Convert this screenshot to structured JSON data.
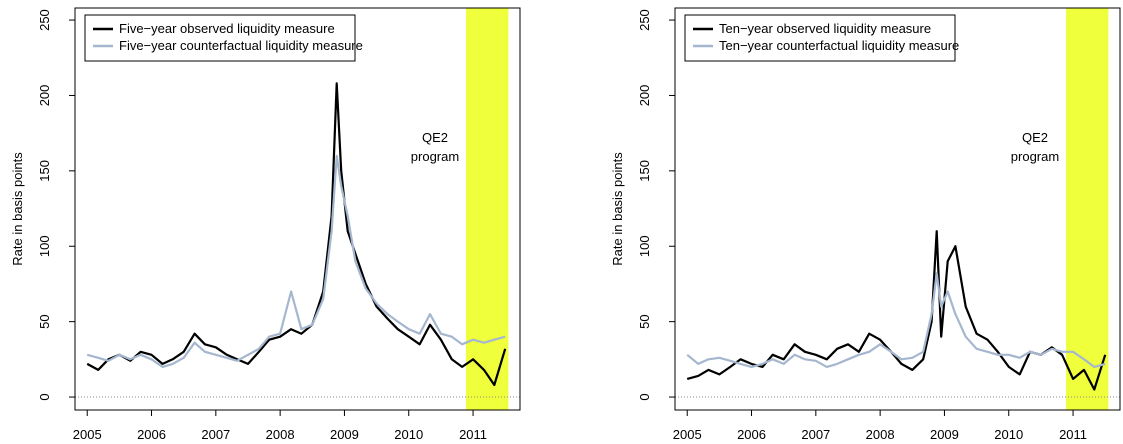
{
  "chart_data": [
    {
      "type": "line",
      "ylabel": "Rate in basis points",
      "legend": "top-left",
      "x": [
        2005.0,
        2005.17,
        2005.33,
        2005.5,
        2005.67,
        2005.83,
        2006.0,
        2006.17,
        2006.33,
        2006.5,
        2006.67,
        2006.83,
        2007.0,
        2007.17,
        2007.33,
        2007.5,
        2007.67,
        2007.83,
        2008.0,
        2008.17,
        2008.33,
        2008.5,
        2008.67,
        2008.8,
        2008.88,
        2008.95,
        2009.05,
        2009.17,
        2009.33,
        2009.5,
        2009.67,
        2009.83,
        2010.0,
        2010.17,
        2010.33,
        2010.5,
        2010.67,
        2010.83,
        2011.0,
        2011.17,
        2011.33,
        2011.5
      ],
      "series": [
        {
          "name": "Five−year observed liquidity measure",
          "color": "#000000",
          "values": [
            22,
            18,
            25,
            28,
            24,
            30,
            28,
            22,
            25,
            30,
            42,
            35,
            33,
            28,
            25,
            22,
            30,
            38,
            40,
            45,
            42,
            48,
            70,
            120,
            208,
            150,
            110,
            95,
            75,
            60,
            52,
            45,
            40,
            35,
            48,
            38,
            25,
            20,
            25,
            18,
            8,
            32
          ]
        },
        {
          "name": "Five−year counterfactual liquidity measure",
          "color": "#a5b6cf",
          "values": [
            28,
            26,
            24,
            28,
            25,
            28,
            25,
            20,
            22,
            26,
            36,
            30,
            28,
            26,
            24,
            28,
            32,
            40,
            42,
            70,
            45,
            48,
            65,
            110,
            160,
            140,
            120,
            90,
            72,
            62,
            55,
            50,
            45,
            42,
            55,
            42,
            40,
            35,
            38,
            36,
            38,
            40
          ]
        }
      ],
      "xlim": [
        2004.81,
        2011.73
      ],
      "ylim": [
        -8.6,
        258
      ],
      "xticks": [
        2005,
        2006,
        2007,
        2008,
        2009,
        2010,
        2011
      ],
      "yticks": [
        0,
        50,
        100,
        150,
        200,
        250
      ],
      "baseline": 0,
      "shade": [
        2010.89,
        2011.55
      ],
      "shade_color": "#f0ff3c",
      "annotation": [
        "QE2",
        "program"
      ]
    },
    {
      "type": "line",
      "ylabel": "Rate in basis points",
      "legend": "top-left",
      "x": [
        2005.0,
        2005.17,
        2005.33,
        2005.5,
        2005.67,
        2005.83,
        2006.0,
        2006.17,
        2006.33,
        2006.5,
        2006.67,
        2006.83,
        2007.0,
        2007.17,
        2007.33,
        2007.5,
        2007.67,
        2007.83,
        2008.0,
        2008.17,
        2008.33,
        2008.5,
        2008.67,
        2008.8,
        2008.88,
        2008.95,
        2009.05,
        2009.17,
        2009.33,
        2009.5,
        2009.67,
        2009.83,
        2010.0,
        2010.17,
        2010.33,
        2010.5,
        2010.67,
        2010.83,
        2011.0,
        2011.17,
        2011.33,
        2011.5
      ],
      "series": [
        {
          "name": "Ten−year observed liquidity measure",
          "color": "#000000",
          "values": [
            12,
            14,
            18,
            15,
            20,
            25,
            22,
            20,
            28,
            25,
            35,
            30,
            28,
            25,
            32,
            35,
            30,
            42,
            38,
            30,
            22,
            18,
            25,
            50,
            110,
            40,
            90,
            100,
            60,
            42,
            38,
            30,
            20,
            15,
            30,
            28,
            33,
            28,
            12,
            18,
            5,
            28
          ]
        },
        {
          "name": "Ten−year counterfactual liquidity measure",
          "color": "#a5b6cf",
          "values": [
            28,
            22,
            25,
            26,
            24,
            22,
            20,
            22,
            25,
            22,
            28,
            25,
            24,
            20,
            22,
            25,
            28,
            30,
            35,
            30,
            25,
            26,
            30,
            55,
            82,
            60,
            70,
            55,
            40,
            32,
            30,
            28,
            28,
            26,
            30,
            28,
            32,
            30,
            30,
            25,
            20,
            22
          ]
        }
      ],
      "xlim": [
        2004.81,
        2011.73
      ],
      "ylim": [
        -8.6,
        258
      ],
      "xticks": [
        2005,
        2006,
        2007,
        2008,
        2009,
        2010,
        2011
      ],
      "yticks": [
        0,
        50,
        100,
        150,
        200,
        250
      ],
      "baseline": 0,
      "shade": [
        2010.89,
        2011.55
      ],
      "shade_color": "#f0ff3c",
      "annotation": [
        "QE2",
        "program"
      ]
    }
  ]
}
